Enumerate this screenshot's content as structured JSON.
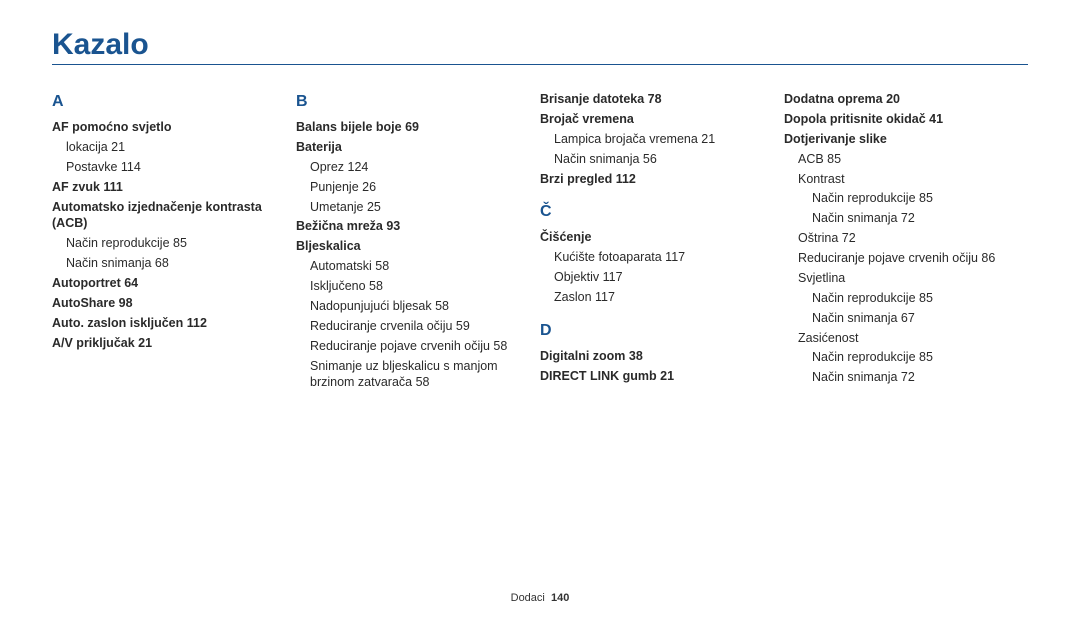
{
  "title": "Kazalo",
  "footer": {
    "label": "Dodaci",
    "page": "140"
  },
  "colors": {
    "accent": "#1a5490",
    "text": "#2a2a2a",
    "rule": "#1a5490"
  },
  "cols": [
    [
      {
        "t": "letter",
        "v": "A"
      },
      {
        "t": "bold",
        "v": "AF pomoćno svjetlo"
      },
      {
        "t": "sub",
        "v": "lokacija  21"
      },
      {
        "t": "sub",
        "v": "Postavke  114"
      },
      {
        "t": "bold",
        "v": "AF zvuk  111"
      },
      {
        "t": "bold",
        "v": "Automatsko izjednačenje kontrasta (ACB)"
      },
      {
        "t": "sub",
        "v": "Način reprodukcije  85"
      },
      {
        "t": "sub",
        "v": "Način snimanja  68"
      },
      {
        "t": "bold",
        "v": "Autoportret  64"
      },
      {
        "t": "bold",
        "v": "AutoShare  98"
      },
      {
        "t": "bold",
        "v": "Auto. zaslon isključen  112"
      },
      {
        "t": "bold",
        "v": "A/V priključak  21"
      }
    ],
    [
      {
        "t": "letter",
        "v": "B"
      },
      {
        "t": "bold",
        "v": "Balans bijele boje  69"
      },
      {
        "t": "bold",
        "v": "Baterija"
      },
      {
        "t": "sub",
        "v": "Oprez  124"
      },
      {
        "t": "sub",
        "v": "Punjenje  26"
      },
      {
        "t": "sub",
        "v": "Umetanje  25"
      },
      {
        "t": "bold",
        "v": "Bežična mreža  93"
      },
      {
        "t": "bold",
        "v": "Bljeskalica"
      },
      {
        "t": "sub",
        "v": "Automatski  58"
      },
      {
        "t": "sub",
        "v": "Isključeno  58"
      },
      {
        "t": "sub",
        "v": "Nadopunjujući bljesak  58"
      },
      {
        "t": "sub",
        "v": "Reduciranje crvenila očiju  59"
      },
      {
        "t": "sub",
        "v": "Reduciranje pojave crvenih očiju  58"
      },
      {
        "t": "sub",
        "v": "Snimanje uz bljeskalicu s manjom brzinom zatvarača  58"
      }
    ],
    [
      {
        "t": "bold",
        "v": "Brisanje datoteka  78"
      },
      {
        "t": "bold",
        "v": "Brojač vremena"
      },
      {
        "t": "sub",
        "v": "Lampica brojača vremena  21"
      },
      {
        "t": "sub",
        "v": "Način snimanja  56"
      },
      {
        "t": "bold",
        "v": "Brzi pregled  112"
      },
      {
        "t": "letter-spaced",
        "v": "Č"
      },
      {
        "t": "bold",
        "v": "Čišćenje"
      },
      {
        "t": "sub",
        "v": "Kućište fotoaparata  117"
      },
      {
        "t": "sub",
        "v": "Objektiv  117"
      },
      {
        "t": "sub",
        "v": "Zaslon  117"
      },
      {
        "t": "letter-spaced",
        "v": "D"
      },
      {
        "t": "bold",
        "v": "Digitalni zoom  38"
      },
      {
        "t": "bold",
        "v": "DIRECT LINK gumb  21"
      }
    ],
    [
      {
        "t": "bold",
        "v": "Dodatna oprema  20"
      },
      {
        "t": "bold",
        "v": "Dopola pritisnite okidač  41"
      },
      {
        "t": "bold",
        "v": "Dotjerivanje slike"
      },
      {
        "t": "sub",
        "v": "ACB  85"
      },
      {
        "t": "sub",
        "v": "Kontrast"
      },
      {
        "t": "sub2",
        "v": "Način reprodukcije  85"
      },
      {
        "t": "sub2",
        "v": "Način snimanja  72"
      },
      {
        "t": "sub",
        "v": "Oštrina  72"
      },
      {
        "t": "sub",
        "v": "Reduciranje pojave crvenih očiju  86"
      },
      {
        "t": "sub",
        "v": "Svjetlina"
      },
      {
        "t": "sub2",
        "v": "Način reprodukcije  85"
      },
      {
        "t": "sub2",
        "v": "Način snimanja  67"
      },
      {
        "t": "sub",
        "v": "Zasićenost"
      },
      {
        "t": "sub2",
        "v": "Način reprodukcije  85"
      },
      {
        "t": "sub2",
        "v": "Način snimanja  72"
      }
    ]
  ]
}
